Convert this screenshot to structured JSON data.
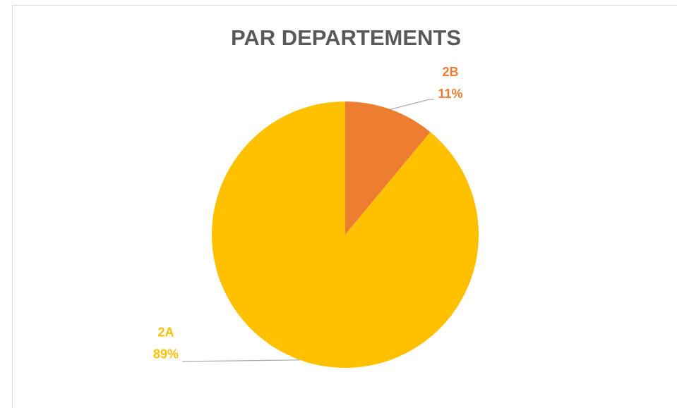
{
  "chart_data": {
    "type": "pie",
    "title": "PAR DEPARTEMENTS",
    "categories": [
      "2B",
      "2A"
    ],
    "values": [
      11,
      89
    ],
    "value_labels": [
      "11%",
      "89%"
    ],
    "colors": [
      "#ed7d31",
      "#ffc000"
    ]
  }
}
